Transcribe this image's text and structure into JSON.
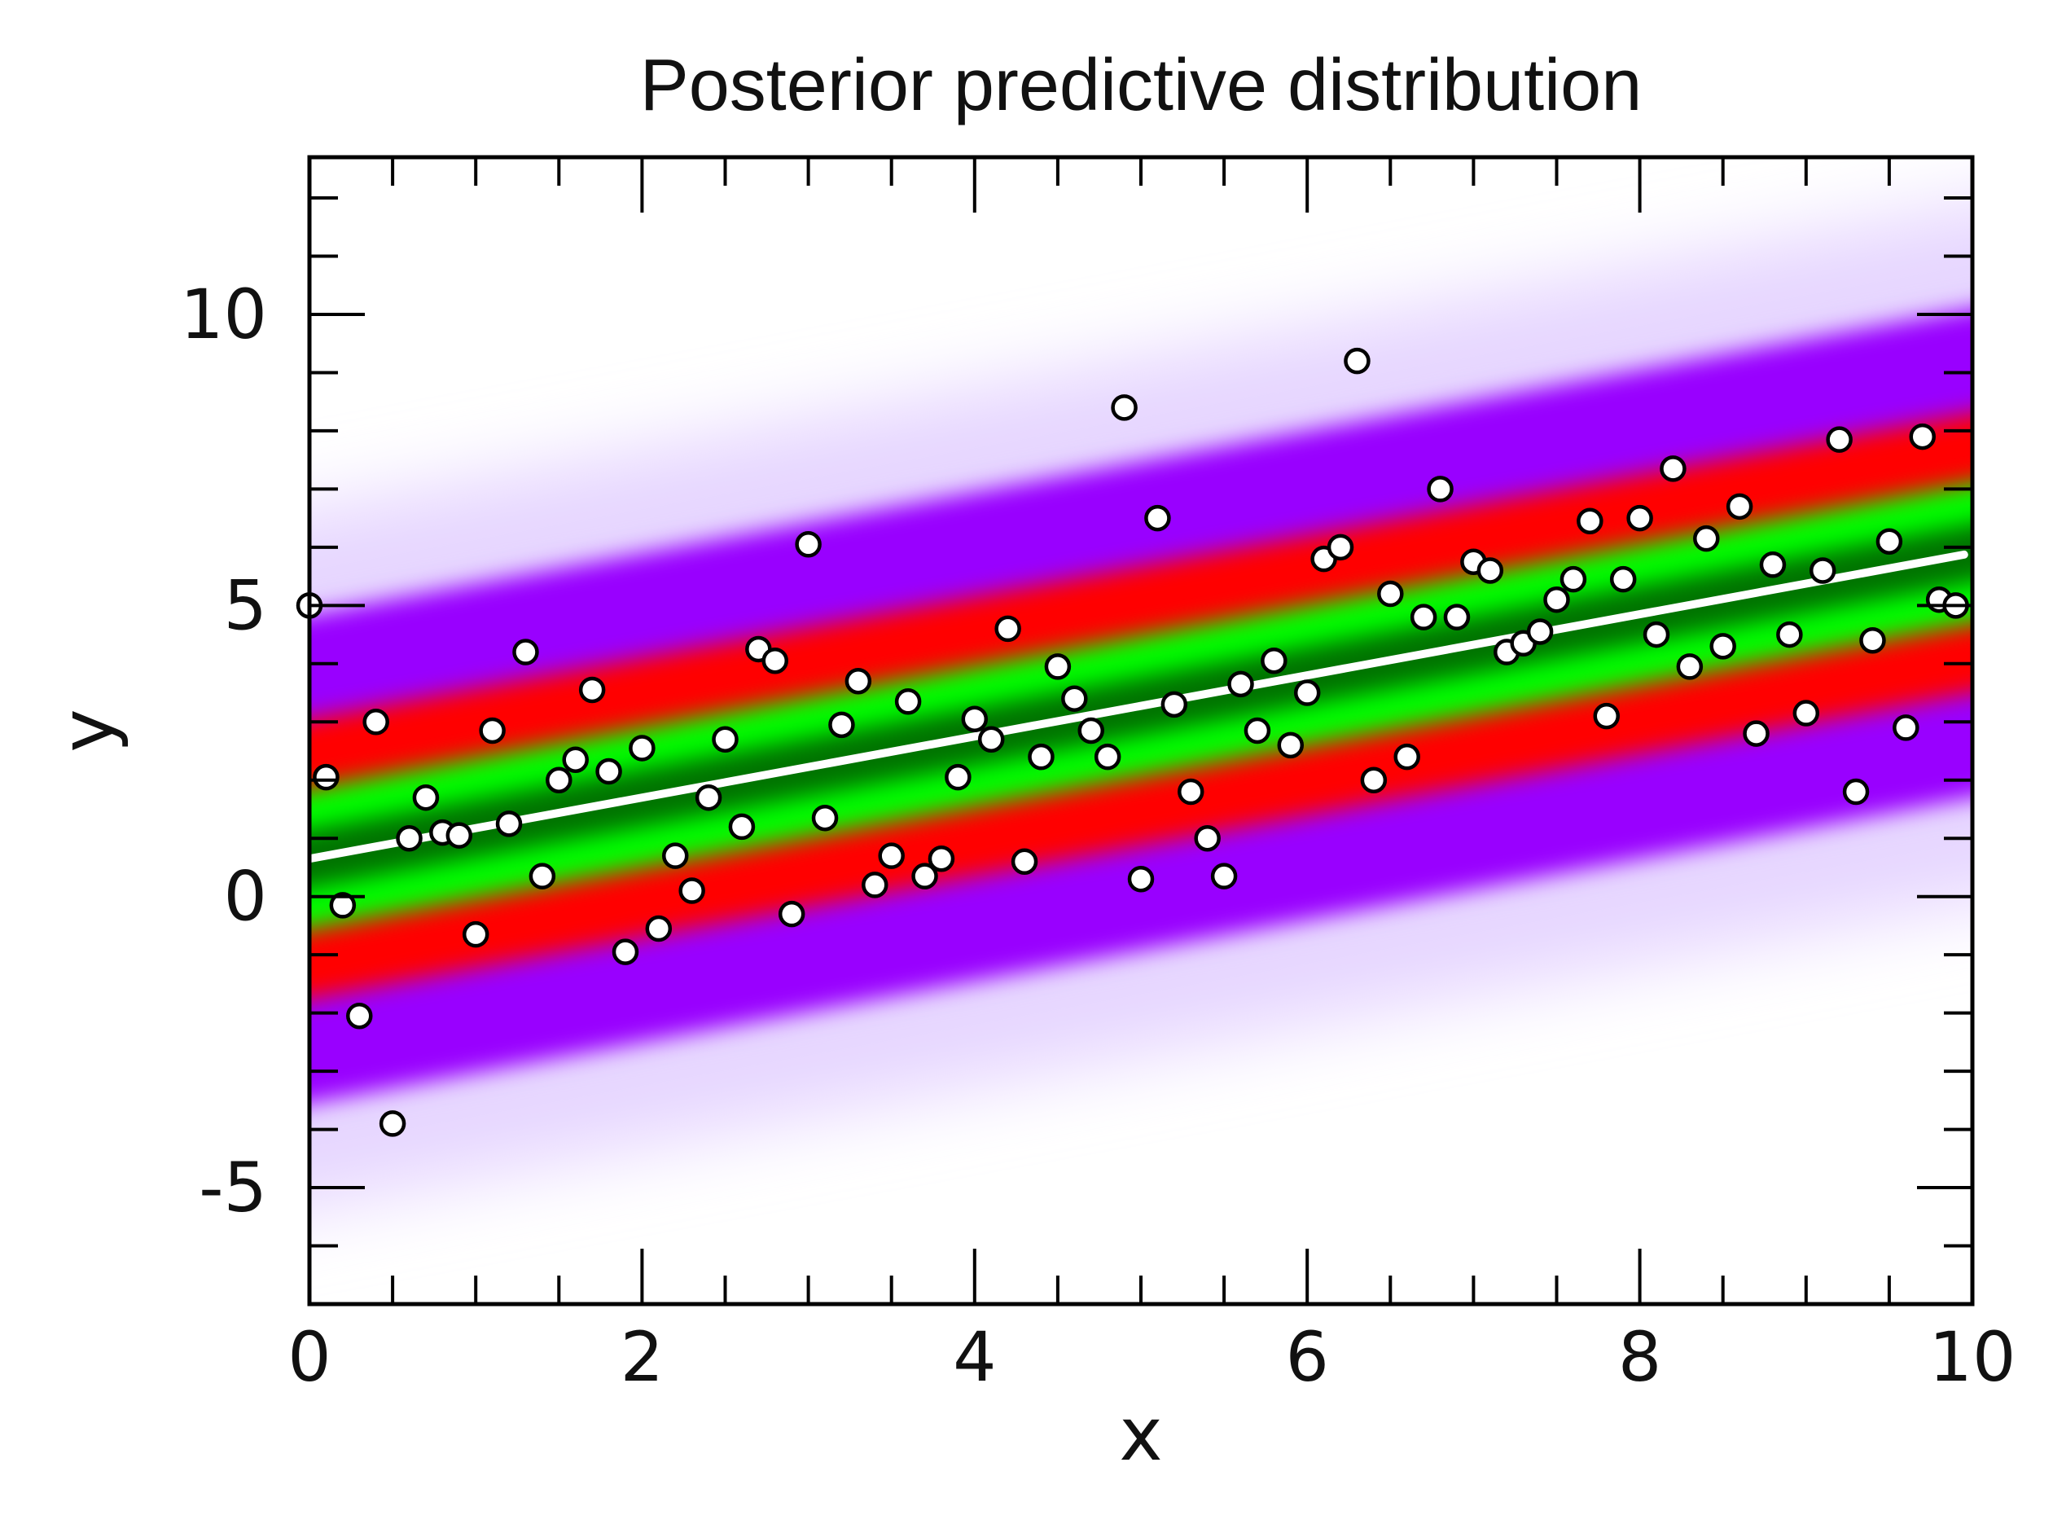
{
  "chart_data": {
    "type": "scatter",
    "title": "Posterior predictive distribution",
    "xlabel": "x",
    "ylabel": "y",
    "xlim": [
      0,
      10
    ],
    "ylim": [
      -7,
      12.7
    ],
    "grid": false,
    "legend": "none",
    "x_ticks": [
      0,
      2,
      4,
      6,
      8,
      10
    ],
    "x_tick_labels": [
      "0",
      "2",
      "4",
      "6",
      "8",
      "10"
    ],
    "y_ticks": [
      -5,
      0,
      5,
      10
    ],
    "y_tick_labels": [
      "-5",
      "0",
      "5",
      "10"
    ],
    "mean_line": {
      "intercept": 0.65,
      "slope": 0.525,
      "color": "#ffffff"
    },
    "predictive_bands": {
      "center_intercept": 0.65,
      "center_slope": 0.525,
      "colors": {
        "core": "#000000",
        "inner": "#00ff00",
        "middle": "#ff0000",
        "outer": "#9900ff",
        "tail": "#e6d6ff"
      },
      "half_widths": {
        "core": 0.5,
        "inner": 1.2,
        "middle": 2.4,
        "outer": 4.2,
        "tail": 6.0
      }
    },
    "points": {
      "x": [
        0.0,
        0.1,
        0.2,
        0.3,
        0.4,
        0.5,
        0.6,
        0.7,
        0.8,
        0.9,
        1.0,
        1.1,
        1.2,
        1.3,
        1.4,
        1.5,
        1.6,
        1.7,
        1.8,
        1.9,
        2.0,
        2.1,
        2.2,
        2.3,
        2.4,
        2.5,
        2.6,
        2.7,
        2.8,
        2.9,
        3.0,
        3.1,
        3.2,
        3.3,
        3.4,
        3.5,
        3.6,
        3.7,
        3.8,
        3.9,
        4.0,
        4.1,
        4.2,
        4.3,
        4.4,
        4.5,
        4.6,
        4.7,
        4.8,
        4.9,
        5.0,
        5.1,
        5.2,
        5.3,
        5.4,
        5.5,
        5.6,
        5.7,
        5.8,
        5.9,
        6.0,
        6.1,
        6.2,
        6.3,
        6.4,
        6.5,
        6.6,
        6.7,
        6.8,
        6.9,
        7.0,
        7.1,
        7.2,
        7.3,
        7.4,
        7.5,
        7.6,
        7.7,
        7.8,
        7.9,
        8.0,
        8.1,
        8.2,
        8.3,
        8.4,
        8.5,
        8.6,
        8.7,
        8.8,
        8.9,
        9.0,
        9.1,
        9.2,
        9.3,
        9.4,
        9.5,
        9.6,
        9.7,
        9.8,
        9.9
      ],
      "y": [
        5.0,
        2.05,
        -0.15,
        -2.05,
        3.0,
        -3.9,
        1.0,
        1.7,
        1.1,
        1.05,
        -0.65,
        2.85,
        1.25,
        4.2,
        0.35,
        2.0,
        2.35,
        3.55,
        2.15,
        -0.95,
        2.55,
        -0.55,
        0.7,
        0.1,
        1.7,
        2.7,
        1.2,
        4.25,
        4.05,
        -0.3,
        6.05,
        1.35,
        2.95,
        3.7,
        0.2,
        0.7,
        3.35,
        0.35,
        0.65,
        2.05,
        3.05,
        2.7,
        4.6,
        0.6,
        2.4,
        3.95,
        3.4,
        2.85,
        2.4,
        8.4,
        0.3,
        6.5,
        3.3,
        1.8,
        1.0,
        0.35,
        3.65,
        2.85,
        4.05,
        2.6,
        3.5,
        5.8,
        6.0,
        9.2,
        2.0,
        5.2,
        2.4,
        4.8,
        7.0,
        4.8,
        5.75,
        5.6,
        4.2,
        4.35,
        4.55,
        5.1,
        5.45,
        6.45,
        3.1,
        5.45,
        6.5,
        4.5,
        7.35,
        3.95,
        6.15,
        4.3,
        6.7,
        2.8,
        5.7,
        4.5,
        3.15,
        5.6,
        7.85,
        1.8,
        4.4,
        6.1,
        2.9,
        7.9,
        5.1,
        5.0
      ]
    }
  }
}
